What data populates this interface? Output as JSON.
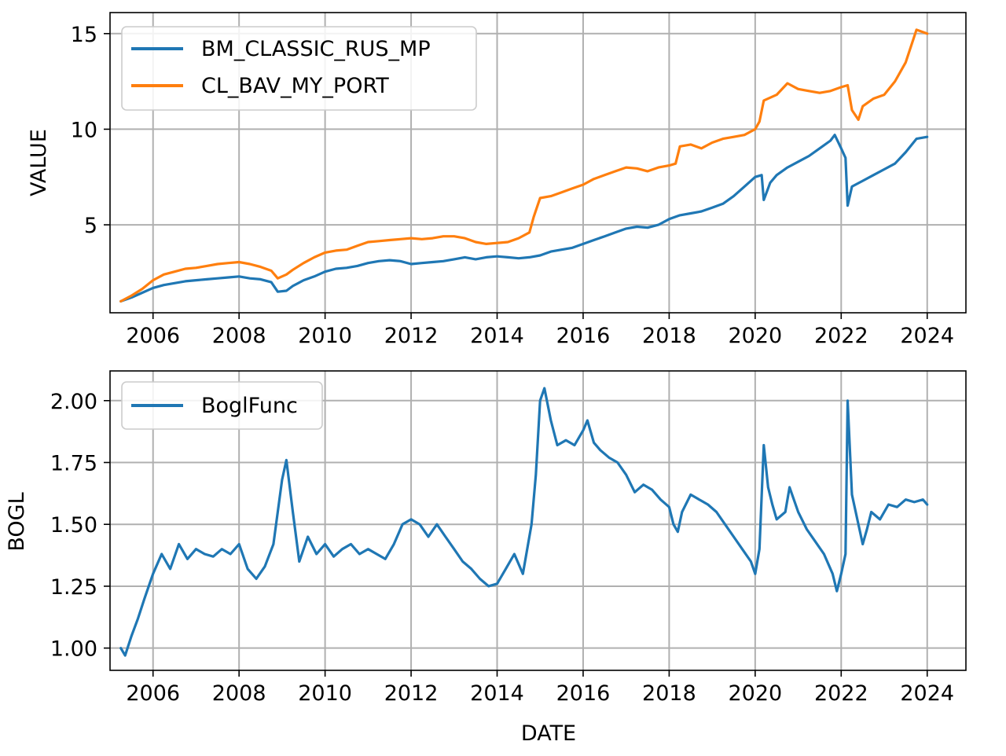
{
  "chart_data": [
    {
      "type": "line",
      "xlabel": "",
      "ylabel": "VALUE",
      "xlim": [
        2005.0,
        2024.9
      ],
      "ylim": [
        0.4,
        16.1
      ],
      "x_ticks": [
        "2006",
        "2008",
        "2010",
        "2012",
        "2014",
        "2016",
        "2018",
        "2020",
        "2022",
        "2024"
      ],
      "y_ticks": [
        "5",
        "10",
        "15"
      ],
      "grid": true,
      "legend": "top-left",
      "series": [
        {
          "name": "BM_CLASSIC_RUS_MP",
          "color": "#1f77b4",
          "x": [
            2005.25,
            2005.5,
            2005.75,
            2006.0,
            2006.25,
            2006.5,
            2006.75,
            2007.0,
            2007.25,
            2007.5,
            2007.75,
            2008.0,
            2008.25,
            2008.5,
            2008.75,
            2008.9,
            2009.1,
            2009.25,
            2009.5,
            2009.75,
            2010.0,
            2010.25,
            2010.5,
            2010.75,
            2011.0,
            2011.25,
            2011.5,
            2011.75,
            2012.0,
            2012.25,
            2012.5,
            2012.75,
            2013.0,
            2013.25,
            2013.5,
            2013.75,
            2014.0,
            2014.25,
            2014.5,
            2014.75,
            2015.0,
            2015.25,
            2015.5,
            2015.75,
            2016.0,
            2016.25,
            2016.5,
            2016.75,
            2017.0,
            2017.25,
            2017.5,
            2017.75,
            2018.0,
            2018.25,
            2018.5,
            2018.75,
            2019.0,
            2019.25,
            2019.5,
            2019.75,
            2020.0,
            2020.15,
            2020.2,
            2020.35,
            2020.5,
            2020.75,
            2021.0,
            2021.25,
            2021.5,
            2021.75,
            2021.85,
            2022.0,
            2022.1,
            2022.15,
            2022.25,
            2022.5,
            2022.75,
            2023.0,
            2023.25,
            2023.5,
            2023.75,
            2024.0
          ],
          "values": [
            1.0,
            1.2,
            1.45,
            1.7,
            1.85,
            1.95,
            2.05,
            2.1,
            2.15,
            2.2,
            2.25,
            2.3,
            2.2,
            2.15,
            2.0,
            1.5,
            1.55,
            1.8,
            2.1,
            2.3,
            2.55,
            2.7,
            2.75,
            2.85,
            3.0,
            3.1,
            3.15,
            3.1,
            2.95,
            3.0,
            3.05,
            3.1,
            3.2,
            3.3,
            3.2,
            3.3,
            3.35,
            3.3,
            3.25,
            3.3,
            3.4,
            3.6,
            3.7,
            3.8,
            4.0,
            4.2,
            4.4,
            4.6,
            4.8,
            4.9,
            4.85,
            5.0,
            5.3,
            5.5,
            5.6,
            5.7,
            5.9,
            6.1,
            6.5,
            7.0,
            7.5,
            7.6,
            6.3,
            7.2,
            7.6,
            8.0,
            8.3,
            8.6,
            9.0,
            9.4,
            9.7,
            9.0,
            8.5,
            6.0,
            7.0,
            7.3,
            7.6,
            7.9,
            8.2,
            8.8,
            9.5,
            9.6
          ]
        },
        {
          "name": "CL_BAV_MY_PORT",
          "color": "#ff7f0e",
          "x": [
            2005.25,
            2005.5,
            2005.75,
            2006.0,
            2006.25,
            2006.5,
            2006.75,
            2007.0,
            2007.25,
            2007.5,
            2007.75,
            2008.0,
            2008.25,
            2008.5,
            2008.75,
            2008.9,
            2009.1,
            2009.25,
            2009.5,
            2009.75,
            2010.0,
            2010.25,
            2010.5,
            2010.75,
            2011.0,
            2011.25,
            2011.5,
            2011.75,
            2012.0,
            2012.25,
            2012.5,
            2012.75,
            2013.0,
            2013.25,
            2013.5,
            2013.75,
            2014.0,
            2014.25,
            2014.5,
            2014.75,
            2014.85,
            2015.0,
            2015.25,
            2015.5,
            2015.75,
            2016.0,
            2016.25,
            2016.5,
            2016.75,
            2017.0,
            2017.25,
            2017.5,
            2017.75,
            2018.0,
            2018.15,
            2018.25,
            2018.5,
            2018.75,
            2019.0,
            2019.25,
            2019.5,
            2019.75,
            2020.0,
            2020.1,
            2020.2,
            2020.5,
            2020.75,
            2021.0,
            2021.25,
            2021.5,
            2021.75,
            2022.0,
            2022.15,
            2022.25,
            2022.4,
            2022.5,
            2022.75,
            2023.0,
            2023.25,
            2023.5,
            2023.75,
            2024.0
          ],
          "values": [
            1.0,
            1.3,
            1.65,
            2.1,
            2.4,
            2.55,
            2.7,
            2.75,
            2.85,
            2.95,
            3.0,
            3.05,
            2.95,
            2.8,
            2.6,
            2.2,
            2.4,
            2.65,
            3.0,
            3.3,
            3.55,
            3.65,
            3.7,
            3.9,
            4.1,
            4.15,
            4.2,
            4.25,
            4.3,
            4.25,
            4.3,
            4.4,
            4.4,
            4.3,
            4.1,
            4.0,
            4.05,
            4.1,
            4.3,
            4.6,
            5.4,
            6.4,
            6.5,
            6.7,
            6.9,
            7.1,
            7.4,
            7.6,
            7.8,
            8.0,
            7.95,
            7.8,
            8.0,
            8.1,
            8.2,
            9.1,
            9.2,
            9.0,
            9.3,
            9.5,
            9.6,
            9.7,
            10.0,
            10.4,
            11.5,
            11.8,
            12.4,
            12.1,
            12.0,
            11.9,
            12.0,
            12.2,
            12.3,
            11.0,
            10.5,
            11.2,
            11.6,
            11.8,
            12.5,
            13.5,
            15.2,
            15.0
          ]
        }
      ]
    },
    {
      "type": "line",
      "xlabel": "DATE",
      "ylabel": "BOGL",
      "xlim": [
        2005.0,
        2024.9
      ],
      "ylim": [
        0.91,
        2.12
      ],
      "x_ticks": [
        "2006",
        "2008",
        "2010",
        "2012",
        "2014",
        "2016",
        "2018",
        "2020",
        "2022",
        "2024"
      ],
      "y_ticks": [
        "1.00",
        "1.25",
        "1.50",
        "1.75",
        "2.00"
      ],
      "grid": true,
      "legend": "top-left",
      "series": [
        {
          "name": "BoglFunc",
          "color": "#1f77b4",
          "x": [
            2005.25,
            2005.35,
            2005.5,
            2005.65,
            2005.8,
            2006.0,
            2006.2,
            2006.4,
            2006.6,
            2006.8,
            2007.0,
            2007.2,
            2007.4,
            2007.6,
            2007.8,
            2008.0,
            2008.2,
            2008.4,
            2008.6,
            2008.8,
            2009.0,
            2009.1,
            2009.25,
            2009.4,
            2009.6,
            2009.8,
            2010.0,
            2010.2,
            2010.4,
            2010.6,
            2010.8,
            2011.0,
            2011.2,
            2011.4,
            2011.6,
            2011.8,
            2012.0,
            2012.2,
            2012.4,
            2012.6,
            2012.8,
            2013.0,
            2013.2,
            2013.4,
            2013.6,
            2013.8,
            2014.0,
            2014.2,
            2014.4,
            2014.6,
            2014.8,
            2014.9,
            2015.0,
            2015.1,
            2015.25,
            2015.4,
            2015.6,
            2015.8,
            2016.0,
            2016.1,
            2016.25,
            2016.4,
            2016.6,
            2016.8,
            2017.0,
            2017.2,
            2017.4,
            2017.6,
            2017.8,
            2018.0,
            2018.1,
            2018.2,
            2018.3,
            2018.5,
            2018.7,
            2018.9,
            2019.1,
            2019.3,
            2019.5,
            2019.7,
            2019.9,
            2020.0,
            2020.1,
            2020.2,
            2020.3,
            2020.4,
            2020.5,
            2020.7,
            2020.8,
            2021.0,
            2021.2,
            2021.4,
            2021.6,
            2021.8,
            2021.9,
            2022.0,
            2022.1,
            2022.15,
            2022.25,
            2022.4,
            2022.5,
            2022.6,
            2022.7,
            2022.9,
            2023.1,
            2023.3,
            2023.5,
            2023.7,
            2023.9,
            2024.0
          ],
          "values": [
            1.0,
            0.97,
            1.05,
            1.12,
            1.2,
            1.3,
            1.38,
            1.32,
            1.42,
            1.36,
            1.4,
            1.38,
            1.37,
            1.4,
            1.38,
            1.42,
            1.32,
            1.28,
            1.33,
            1.42,
            1.68,
            1.76,
            1.55,
            1.35,
            1.45,
            1.38,
            1.42,
            1.37,
            1.4,
            1.42,
            1.38,
            1.4,
            1.38,
            1.36,
            1.42,
            1.5,
            1.52,
            1.5,
            1.45,
            1.5,
            1.45,
            1.4,
            1.35,
            1.32,
            1.28,
            1.25,
            1.26,
            1.32,
            1.38,
            1.3,
            1.5,
            1.7,
            2.0,
            2.05,
            1.92,
            1.82,
            1.84,
            1.82,
            1.88,
            1.92,
            1.83,
            1.8,
            1.77,
            1.75,
            1.7,
            1.63,
            1.66,
            1.64,
            1.6,
            1.57,
            1.5,
            1.47,
            1.55,
            1.62,
            1.6,
            1.58,
            1.55,
            1.5,
            1.45,
            1.4,
            1.35,
            1.3,
            1.4,
            1.82,
            1.65,
            1.58,
            1.52,
            1.55,
            1.65,
            1.55,
            1.48,
            1.43,
            1.38,
            1.3,
            1.23,
            1.3,
            1.38,
            2.0,
            1.62,
            1.5,
            1.42,
            1.48,
            1.55,
            1.52,
            1.58,
            1.57,
            1.6,
            1.59,
            1.6,
            1.58
          ]
        }
      ]
    }
  ]
}
